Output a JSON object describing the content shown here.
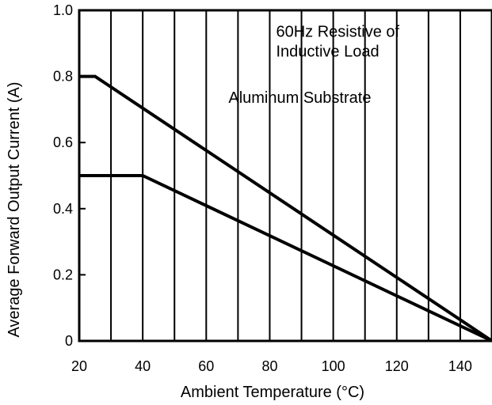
{
  "chart_data": {
    "type": "line",
    "title": "",
    "xlabel": "Ambient Temperature (°C)",
    "ylabel": "Average Forward Output Current (A)",
    "xlim": [
      20,
      150
    ],
    "ylim": [
      0,
      1.0
    ],
    "x_ticks": [
      {
        "value": 20,
        "label": "20"
      },
      {
        "value": 40,
        "label": "40"
      },
      {
        "value": 60,
        "label": "60"
      },
      {
        "value": 80,
        "label": "80"
      },
      {
        "value": 100,
        "label": "100"
      },
      {
        "value": 120,
        "label": "120"
      },
      {
        "value": 140,
        "label": "140"
      }
    ],
    "y_ticks": [
      {
        "value": 0,
        "label": "0"
      },
      {
        "value": 0.2,
        "label": "0.2"
      },
      {
        "value": 0.4,
        "label": "0.4"
      },
      {
        "value": 0.6,
        "label": "0.6"
      },
      {
        "value": 0.8,
        "label": "0.8"
      },
      {
        "value": 1.0,
        "label": "1.0"
      }
    ],
    "vertical_grid_x": [
      30,
      40,
      50,
      60,
      70,
      80,
      90,
      100,
      110,
      120,
      130,
      140
    ],
    "grid": "vertical",
    "series": [
      {
        "x": [
          20,
          25,
          150
        ],
        "y": [
          0.8,
          0.8,
          0
        ]
      },
      {
        "x": [
          20,
          40,
          150
        ],
        "y": [
          0.5,
          0.5,
          0
        ]
      }
    ],
    "annotations": [
      {
        "text": "60Hz Resistive of",
        "x": 82,
        "y": 0.92
      },
      {
        "text": "Inductive Load",
        "x": 82,
        "y": 0.86
      },
      {
        "text": "Aluminum Substrate",
        "x": 67,
        "y": 0.72
      }
    ]
  }
}
